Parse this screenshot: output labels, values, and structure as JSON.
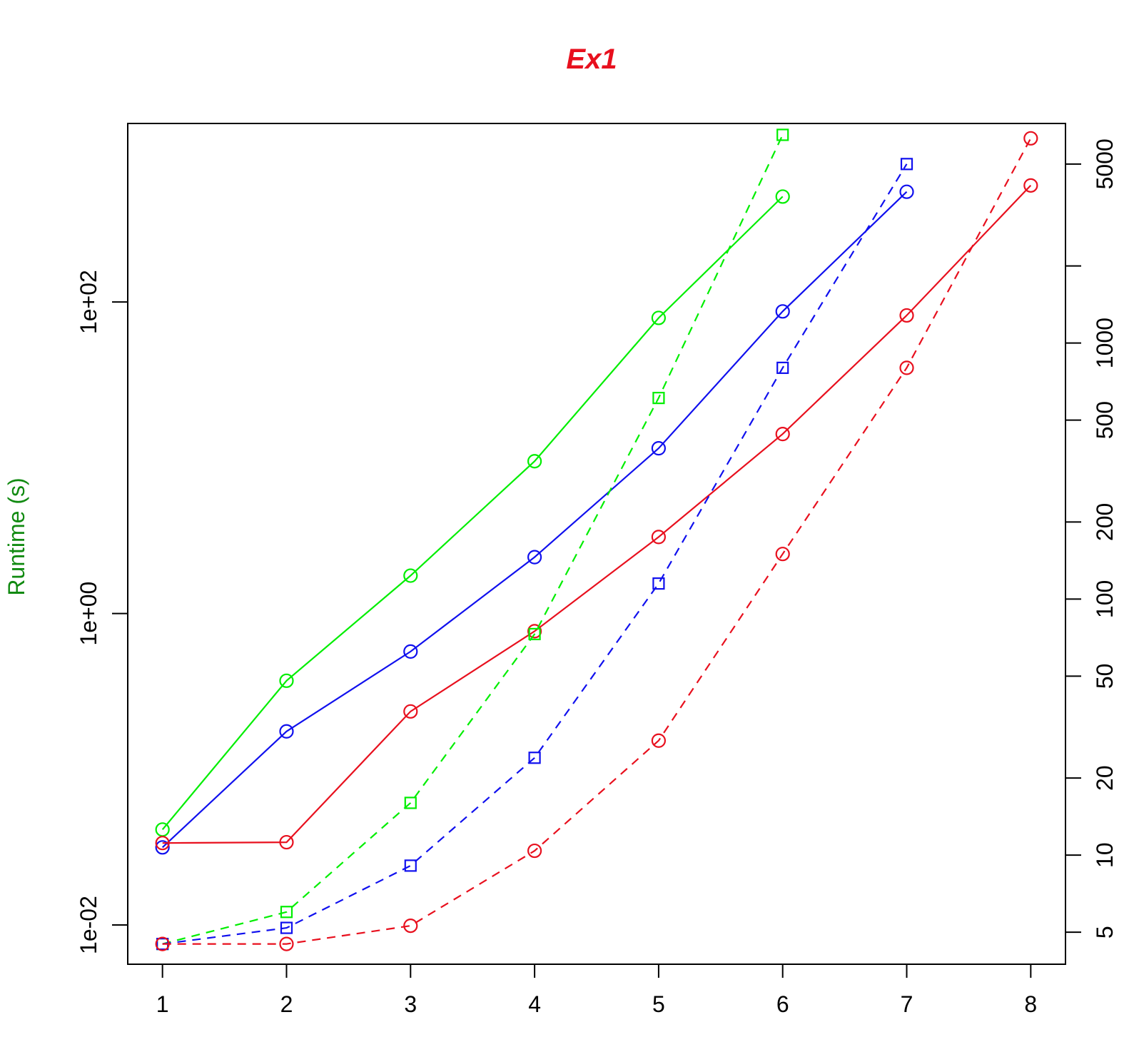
{
  "chart_data": {
    "type": "line",
    "title": "Ex1",
    "title_color": "#e8101e",
    "ylabel": "Runtime (s)",
    "ylabel_color": "#118a11",
    "xlabel": "",
    "x_ticks": [
      "1",
      "2",
      "3",
      "4",
      "5",
      "6",
      "7",
      "8"
    ],
    "xlim": [
      0.72,
      8.28
    ],
    "y_left": {
      "scale": "log",
      "ylim": [
        0.0056,
        1400
      ],
      "ticks": [
        0.01,
        1,
        100
      ],
      "tick_labels": [
        "1e-02",
        "1e+00",
        "1e+02"
      ]
    },
    "y_right": {
      "scale": "log",
      "ticks": [
        5,
        10,
        20,
        50,
        100,
        200,
        500,
        1000,
        2000,
        5000
      ],
      "tick_labels": [
        "5",
        "10",
        "20",
        "50",
        "100",
        "200",
        "500",
        "1000",
        "",
        "5000"
      ],
      "value_at_left_min": 3.75,
      "value_at_left_max": 7200
    },
    "grid": false,
    "legend": "none",
    "series": [
      {
        "color": "#00ee00",
        "style": "solid",
        "marker": "circle",
        "axis": "left",
        "x": [
          1,
          2,
          3,
          4,
          5,
          6
        ],
        "y": [
          0.041,
          0.37,
          1.75,
          9.5,
          79,
          475
        ]
      },
      {
        "color": "#1010ee",
        "style": "solid",
        "marker": "circle",
        "axis": "left",
        "x": [
          1,
          2,
          3,
          4,
          5,
          6,
          7
        ],
        "y": [
          0.0315,
          0.175,
          0.57,
          2.3,
          11.5,
          87,
          510
        ]
      },
      {
        "color": "#e8101e",
        "style": "solid",
        "marker": "circle",
        "axis": "left",
        "x": [
          1,
          2,
          3,
          4,
          5,
          6,
          7,
          8
        ],
        "y": [
          0.0336,
          0.034,
          0.235,
          0.77,
          3.1,
          14.2,
          82,
          560
        ]
      },
      {
        "color": "#00ee00",
        "style": "dashed",
        "marker": "square",
        "axis": "right",
        "x": [
          1,
          2,
          3,
          4,
          5,
          6
        ],
        "y": [
          4.5,
          6,
          16,
          73,
          610,
          6500
        ]
      },
      {
        "color": "#1010ee",
        "style": "dashed",
        "marker": "square",
        "axis": "right",
        "x": [
          1,
          2,
          3,
          4,
          5,
          6,
          7
        ],
        "y": [
          4.5,
          5.2,
          9.1,
          24,
          115,
          800,
          5000
        ]
      },
      {
        "color": "#e8101e",
        "style": "dashed",
        "marker": "circle",
        "axis": "right",
        "x": [
          1,
          2,
          3,
          4,
          5,
          6,
          7,
          8
        ],
        "y": [
          4.5,
          4.5,
          5.3,
          10.4,
          28,
          150,
          800,
          6300
        ]
      }
    ]
  }
}
